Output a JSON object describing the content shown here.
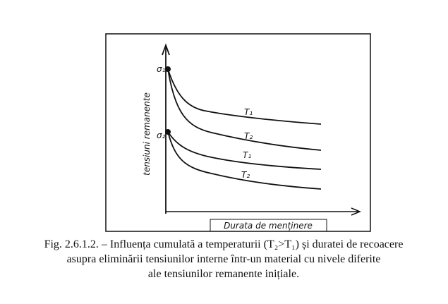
{
  "diagram": {
    "y_label": "tensiuni remanente",
    "x_label": "Durata de menținere",
    "points": [
      {
        "label": "σ₁"
      },
      {
        "label": "σ₂"
      }
    ],
    "curves": [
      {
        "label": "T₁"
      },
      {
        "label": "T₂"
      },
      {
        "label": "T₁"
      },
      {
        "label": "T₂"
      }
    ]
  },
  "caption": [
    "Fig. 2.6.1.2. – Influența cumulată a temperaturii (T₂>T₁) și duratei de recoacere",
    "asupra eliminării tensiunilor interne într-un material cu nivele diferite",
    "ale tensiunilor remanente inițiale."
  ]
}
